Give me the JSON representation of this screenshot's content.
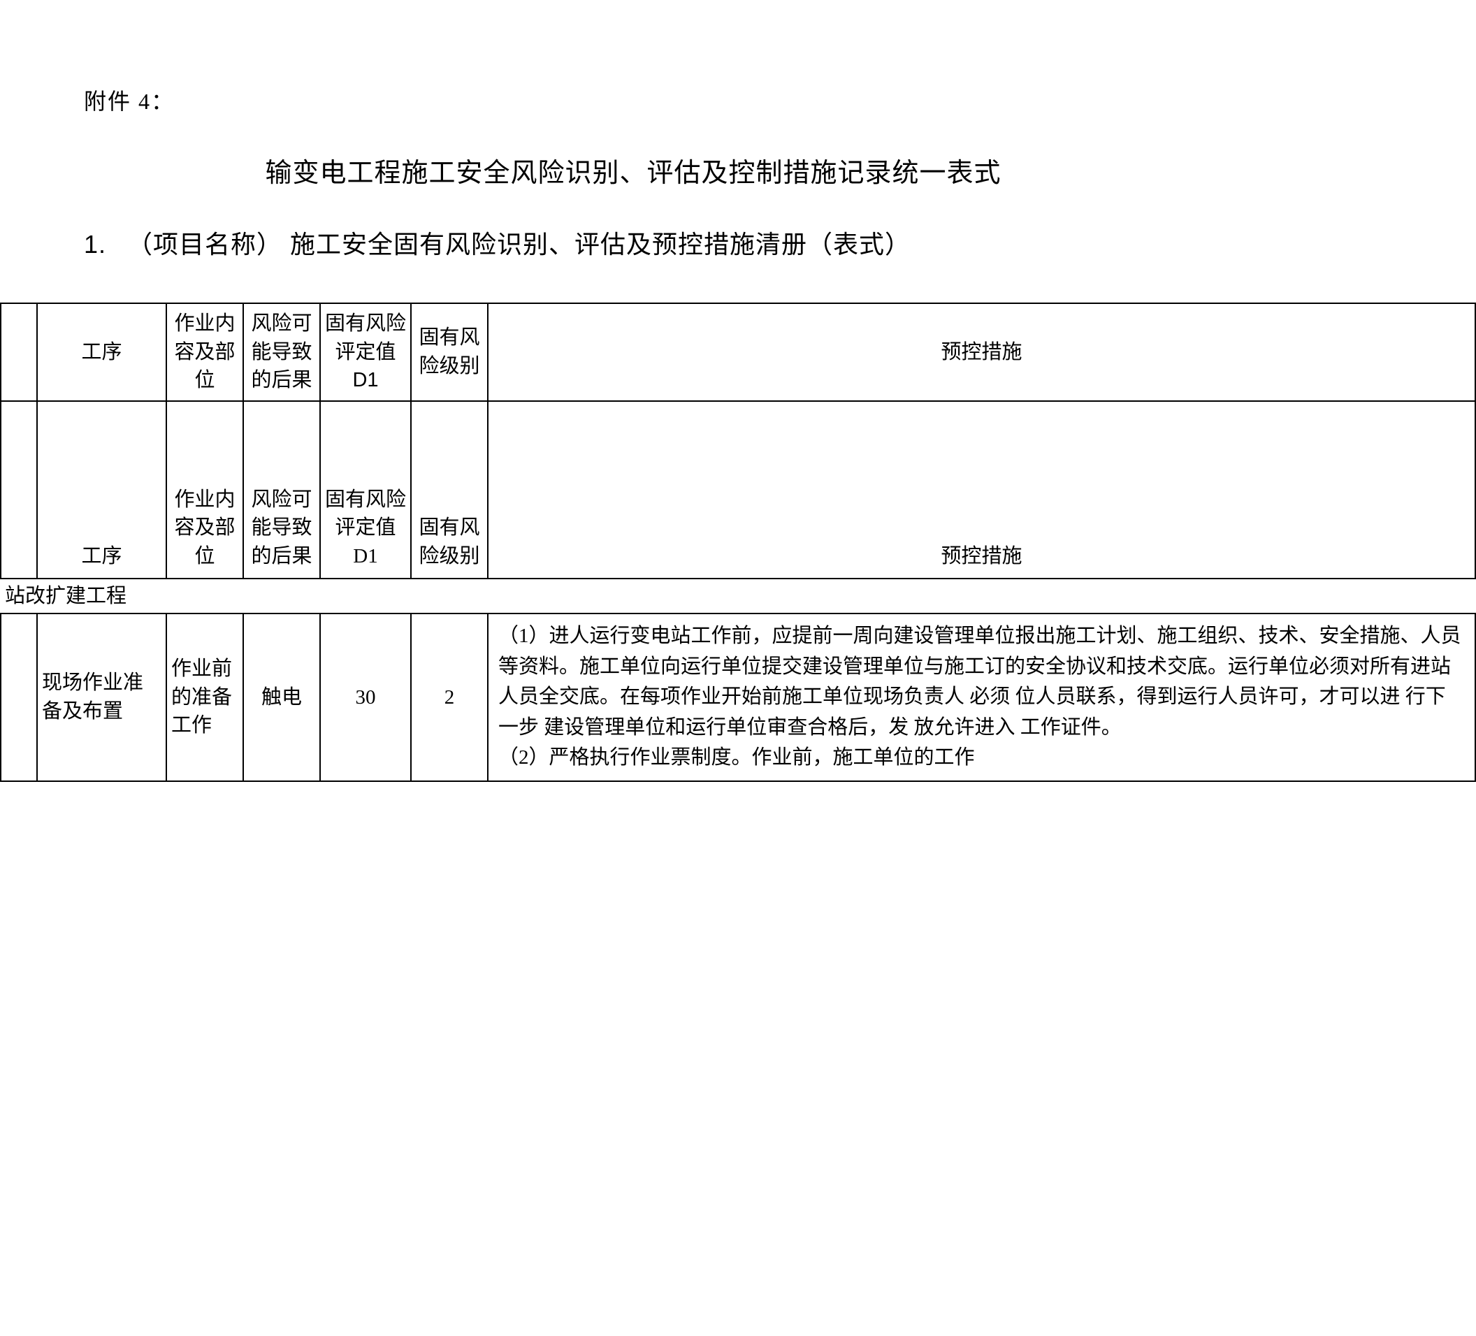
{
  "attachment_label": "附件 4：",
  "main_title": "输变电工程施工安全风险识别、评估及控制措施记录统一表式",
  "sub_title_num": "1.",
  "sub_title_text": "（项目名称） 施工安全固有风险识别、评估及预控措施清册（表式）",
  "header": {
    "col_proc": "工序",
    "col_content": "作业内容及部位",
    "col_risk": "风险可能导致的后果",
    "col_d1": "固有风险评定值 D1",
    "col_level": "固有风险级别",
    "col_measure": "预控措施"
  },
  "sub_header": {
    "col_proc": "工序",
    "col_content": "作业内容及部位",
    "col_risk": "风险可能导致的后果",
    "col_d1": "固有风险评定值 D1",
    "col_level": "固有风险级别",
    "col_measure": "预控措施"
  },
  "section_label": "站改扩建工程",
  "row1": {
    "proc": "现场作业准备及布置",
    "content": "作业前的准备工作",
    "risk": "触电",
    "d1": "30",
    "level": "2",
    "measure": "（1）进人运行变电站工作前，应提前一周向建设管理单位报出施工计划、施工组织、技术、安全措施、人员等资料。施工单位向运行单位提交建设管理单位与施工订的安全协议和技术交底。运行单位必须对所有进站 人员全交底。在每项作业开始前施工单位现场负责人 必须 位人员联系，得到运行人员许可，才可以进 行下一步 建设管理单位和运行单位审查合格后，发 放允许进入 工作证件。\n（2）严格执行作业票制度。作业前，施工单位的工作"
  },
  "style": {
    "font_family": "SimSun",
    "heading_font_family": "SimHei",
    "text_color": "#000000",
    "background_color": "#ffffff",
    "border_color": "#000000",
    "body_font_size": 29,
    "title_font_size": 38,
    "subtitle_font_size": 36,
    "attachment_font_size": 32
  }
}
